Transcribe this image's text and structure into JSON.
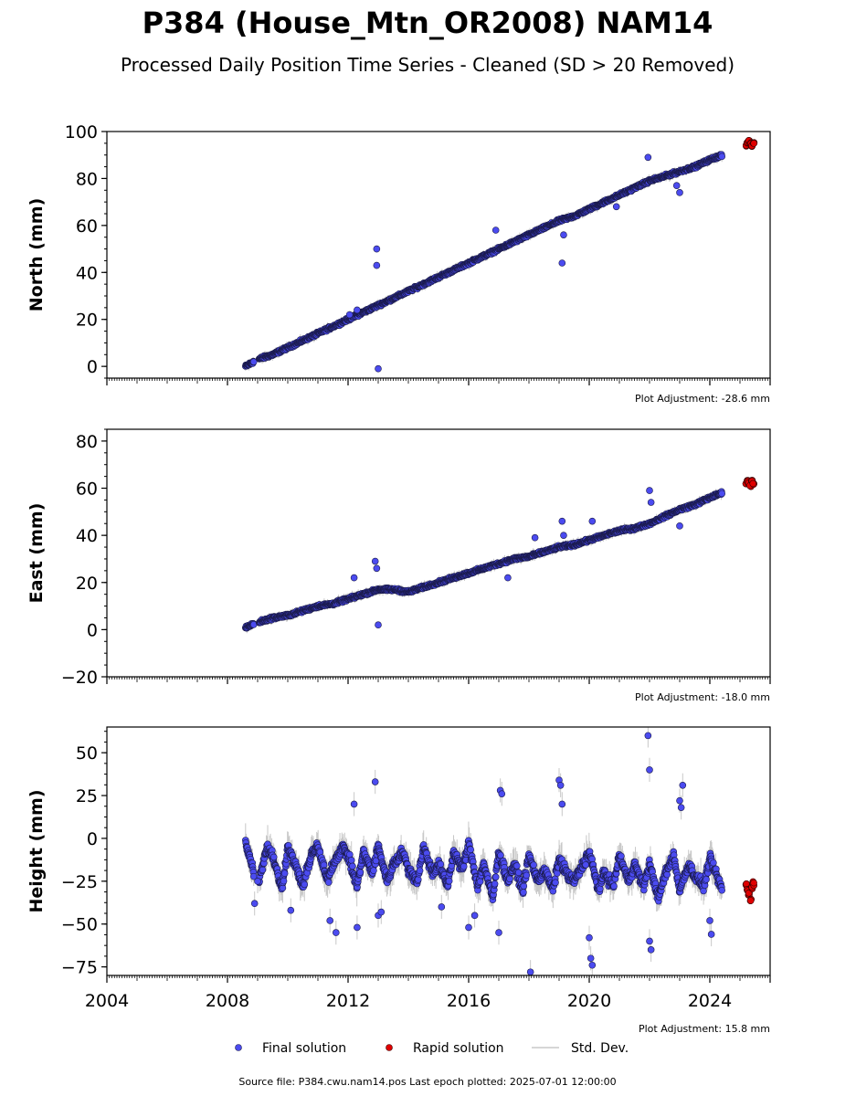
{
  "title": "P384 (House_Mtn_OR2008) NAM14",
  "subtitle": "Processed Daily Position Time Series - Cleaned (SD > 20 Removed)",
  "source_note": "Source file: P384.cwu.nam14.pos  Last epoch plotted: 2025-07-01 12:00:00",
  "colors": {
    "final": "#4b4bf0",
    "rapid": "#e00000",
    "stddev": "#c8c8c8",
    "edge": "#1a1a4a"
  },
  "legend": [
    {
      "label": "Final solution",
      "kind": "final"
    },
    {
      "label": "Rapid solution",
      "kind": "rapid"
    },
    {
      "label": "Std. Dev.",
      "kind": "stddev"
    }
  ],
  "chart_data": [
    {
      "type": "scatter",
      "name": "north",
      "ylabel": "North (mm)",
      "ylim": [
        -5,
        100
      ],
      "yticks": [
        0,
        20,
        40,
        60,
        80,
        100
      ],
      "ytick_labels": [
        "0",
        "20",
        "40",
        "60",
        "80",
        "100"
      ],
      "xlim": [
        2004,
        2026
      ],
      "xticks": [
        2004,
        2008,
        2012,
        2016,
        2020,
        2024
      ],
      "xtick_labels": [],
      "adjustment": "Plot Adjustment: -28.6 mm",
      "series": [
        {
          "kind": "final",
          "x": [
            2008.6,
            2009.0,
            2009.5,
            2010.0,
            2010.5,
            2011.0,
            2011.5,
            2012.0,
            2012.5,
            2013.0,
            2013.5,
            2014.0,
            2014.5,
            2015.0,
            2015.5,
            2016.0,
            2016.5,
            2017.0,
            2017.5,
            2018.0,
            2018.5,
            2019.0,
            2019.5,
            2020.0,
            2020.5,
            2021.0,
            2021.5,
            2022.0,
            2022.5,
            2023.0,
            2023.5,
            2024.0,
            2024.4
          ],
          "y": [
            0,
            3,
            5,
            8,
            11,
            14,
            17,
            20,
            23,
            26,
            29,
            32,
            35,
            38,
            41,
            44,
            47,
            50,
            53,
            56,
            59,
            62,
            64,
            67,
            70,
            73,
            76,
            79,
            81,
            83,
            85,
            88,
            90
          ]
        },
        {
          "kind": "final_outliers",
          "x": [
            2012.05,
            2012.3,
            2012.95,
            2012.95,
            2013.0,
            2016.9,
            2019.1,
            2019.15,
            2020.9,
            2021.95,
            2022.9,
            2023.0
          ],
          "y": [
            22,
            24,
            50,
            43,
            -1,
            58,
            44,
            56,
            68,
            89,
            77,
            74
          ]
        },
        {
          "kind": "rapid",
          "x": [
            2025.2,
            2025.25,
            2025.3,
            2025.35,
            2025.4,
            2025.45
          ],
          "y": [
            94,
            95,
            96,
            95,
            94,
            95
          ]
        }
      ]
    },
    {
      "type": "scatter",
      "name": "east",
      "ylabel": "East (mm)",
      "ylim": [
        -20,
        85
      ],
      "yticks": [
        -20,
        0,
        20,
        40,
        60,
        80
      ],
      "ytick_labels": [
        "−20",
        "0",
        "20",
        "40",
        "60",
        "80"
      ],
      "xlim": [
        2004,
        2026
      ],
      "xticks": [
        2004,
        2008,
        2012,
        2016,
        2020,
        2024
      ],
      "xtick_labels": [],
      "adjustment": "Plot Adjustment: -18.0 mm",
      "series": [
        {
          "kind": "final",
          "x": [
            2008.6,
            2009.0,
            2009.5,
            2010.0,
            2010.5,
            2011.0,
            2011.5,
            2012.0,
            2012.5,
            2013.0,
            2013.5,
            2014.0,
            2014.5,
            2015.0,
            2015.5,
            2016.0,
            2016.5,
            2017.0,
            2017.5,
            2018.0,
            2018.5,
            2019.0,
            2019.5,
            2020.0,
            2020.5,
            2021.0,
            2021.5,
            2022.0,
            2022.5,
            2023.0,
            2023.5,
            2024.0,
            2024.4
          ],
          "y": [
            1,
            3,
            5,
            6,
            8,
            10,
            11,
            13,
            15,
            17,
            17,
            16,
            18,
            20,
            22,
            24,
            26,
            28,
            30,
            31,
            33,
            35,
            36,
            38,
            40,
            42,
            43,
            45,
            48,
            51,
            53,
            56,
            58
          ]
        },
        {
          "kind": "final_outliers",
          "x": [
            2012.2,
            2012.9,
            2012.95,
            2013.0,
            2017.3,
            2018.2,
            2019.1,
            2019.15,
            2020.1,
            2022.0,
            2022.05,
            2023.0
          ],
          "y": [
            22,
            29,
            26,
            2,
            22,
            39,
            46,
            40,
            46,
            59,
            54,
            44
          ]
        },
        {
          "kind": "rapid",
          "x": [
            2025.2,
            2025.25,
            2025.3,
            2025.35,
            2025.4,
            2025.45
          ],
          "y": [
            62,
            63,
            62,
            61,
            63,
            62
          ]
        }
      ]
    },
    {
      "type": "scatter",
      "name": "height",
      "ylabel": "Height (mm)",
      "ylim": [
        -80,
        65
      ],
      "yticks": [
        -75,
        -50,
        -25,
        0,
        25,
        50
      ],
      "ytick_labels": [
        "−75",
        "−50",
        "−25",
        "0",
        "25",
        "50"
      ],
      "xlim": [
        2004,
        2026
      ],
      "xticks": [
        2004,
        2008,
        2012,
        2016,
        2020,
        2024
      ],
      "xtick_labels": [
        "2004",
        "2008",
        "2012",
        "2016",
        "2020",
        "2024"
      ],
      "adjustment": "Plot Adjustment: 15.8 mm",
      "series": [
        {
          "kind": "final",
          "x": [
            2008.6,
            2008.8,
            2009.0,
            2009.3,
            2009.5,
            2009.8,
            2010.0,
            2010.3,
            2010.5,
            2010.8,
            2011.0,
            2011.3,
            2011.5,
            2011.8,
            2012.0,
            2012.3,
            2012.5,
            2012.8,
            2013.0,
            2013.3,
            2013.5,
            2013.8,
            2014.0,
            2014.3,
            2014.5,
            2014.8,
            2015.0,
            2015.3,
            2015.5,
            2015.8,
            2016.0,
            2016.3,
            2016.5,
            2016.8,
            2017.0,
            2017.3,
            2017.5,
            2017.8,
            2018.0,
            2018.3,
            2018.5,
            2018.8,
            2019.0,
            2019.3,
            2019.5,
            2019.8,
            2020.0,
            2020.3,
            2020.5,
            2020.8,
            2021.0,
            2021.3,
            2021.5,
            2021.8,
            2022.0,
            2022.3,
            2022.5,
            2022.8,
            2023.0,
            2023.3,
            2023.5,
            2023.8,
            2024.0,
            2024.3,
            2024.4
          ],
          "y": [
            -2,
            -15,
            -28,
            -5,
            -10,
            -30,
            -5,
            -18,
            -28,
            -8,
            -5,
            -25,
            -15,
            -5,
            -10,
            -28,
            -8,
            -20,
            -5,
            -25,
            -15,
            -8,
            -18,
            -25,
            -5,
            -20,
            -15,
            -28,
            -8,
            -18,
            -3,
            -28,
            -15,
            -35,
            -8,
            -25,
            -15,
            -30,
            -10,
            -25,
            -18,
            -30,
            -12,
            -22,
            -25,
            -15,
            -8,
            -30,
            -20,
            -28,
            -10,
            -25,
            -15,
            -28,
            -15,
            -35,
            -22,
            -10,
            -30,
            -15,
            -22,
            -28,
            -12,
            -25,
            -30
          ]
        },
        {
          "kind": "final_outliers",
          "x": [
            2008.9,
            2009.0,
            2010.1,
            2011.4,
            2011.6,
            2012.2,
            2012.3,
            2012.9,
            2013.0,
            2013.1,
            2015.1,
            2016.0,
            2016.2,
            2017.0,
            2017.05,
            2017.1,
            2018.05,
            2019.0,
            2019.05,
            2019.1,
            2020.0,
            2020.05,
            2020.1,
            2021.95,
            2022.0,
            2022.0,
            2022.05,
            2023.0,
            2023.05,
            2023.1,
            2024.0,
            2024.05
          ],
          "y": [
            -38,
            -25,
            -42,
            -48,
            -55,
            20,
            -52,
            33,
            -45,
            -43,
            -40,
            -52,
            -45,
            -55,
            28,
            26,
            -78,
            34,
            31,
            20,
            -58,
            -70,
            -74,
            60,
            40,
            -60,
            -65,
            22,
            18,
            31,
            -48,
            -56
          ]
        },
        {
          "kind": "rapid",
          "x": [
            2025.2,
            2025.25,
            2025.3,
            2025.35,
            2025.4,
            2025.45
          ],
          "y": [
            -27,
            -30,
            -33,
            -36,
            -29,
            -26
          ]
        }
      ]
    }
  ]
}
